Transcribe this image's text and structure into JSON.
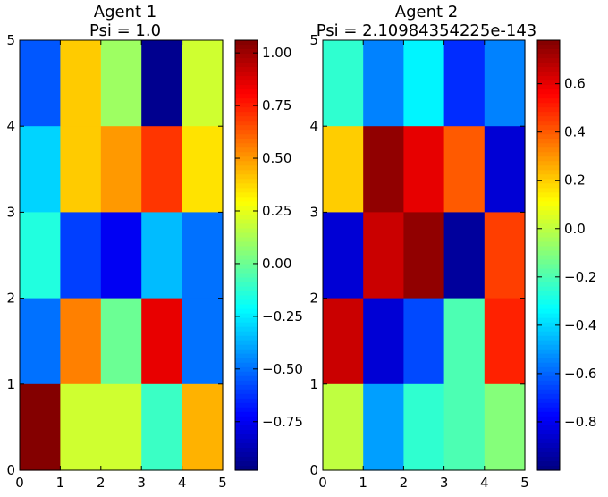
{
  "chart_data": [
    {
      "type": "heatmap",
      "title_lines": [
        "Agent 1",
        "Psi = 1.0"
      ],
      "xlim": [
        0,
        5
      ],
      "ylim": [
        0,
        5
      ],
      "xticks": [
        "0",
        "1",
        "2",
        "3",
        "4",
        "5"
      ],
      "yticks": [
        "0",
        "1",
        "2",
        "3",
        "4",
        "5"
      ],
      "colormap": "jet",
      "vmin": -0.98,
      "vmax": 1.06,
      "colorbar_ticks": [
        "−0.75",
        "−0.50",
        "−0.25",
        "0.00",
        "0.25",
        "0.50",
        "0.75",
        "1.00"
      ],
      "colorbar_tick_values": [
        -0.75,
        -0.5,
        -0.25,
        0.0,
        0.25,
        0.5,
        0.75,
        1.0
      ],
      "rows_top_to_bottom": [
        [
          -0.55,
          0.4,
          0.1,
          -0.95,
          0.2
        ],
        [
          -0.3,
          0.4,
          0.5,
          0.7,
          0.35
        ],
        [
          -0.15,
          -0.6,
          -0.75,
          -0.35,
          -0.5
        ],
        [
          -0.5,
          0.55,
          0.0,
          0.85,
          -0.5
        ],
        [
          1.05,
          0.2,
          0.2,
          -0.1,
          0.45
        ]
      ]
    },
    {
      "type": "heatmap",
      "title_lines": [
        "Agent 2",
        "Psi = 2.10984354225e-143"
      ],
      "xlim": [
        0,
        5
      ],
      "ylim": [
        0,
        5
      ],
      "xticks": [
        "0",
        "1",
        "2",
        "3",
        "4",
        "5"
      ],
      "yticks": [
        "0",
        "1",
        "2",
        "3",
        "4",
        "5"
      ],
      "colormap": "jet",
      "vmin": -1.0,
      "vmax": 0.78,
      "colorbar_ticks": [
        "−0.8",
        "−0.6",
        "−0.4",
        "−0.2",
        "0.0",
        "0.2",
        "0.4",
        "0.6"
      ],
      "colorbar_tick_values": [
        -0.8,
        -0.6,
        -0.4,
        -0.2,
        0.0,
        0.2,
        0.4,
        0.6
      ],
      "rows_top_to_bottom": [
        [
          -0.25,
          -0.55,
          -0.35,
          -0.7,
          -0.55
        ],
        [
          0.2,
          0.75,
          0.6,
          0.4,
          -0.85
        ],
        [
          -0.85,
          0.65,
          0.75,
          -0.95,
          0.45
        ],
        [
          0.65,
          -0.85,
          -0.65,
          -0.2,
          0.5
        ],
        [
          0.0,
          -0.5,
          -0.25,
          -0.2,
          -0.1
        ]
      ]
    }
  ]
}
